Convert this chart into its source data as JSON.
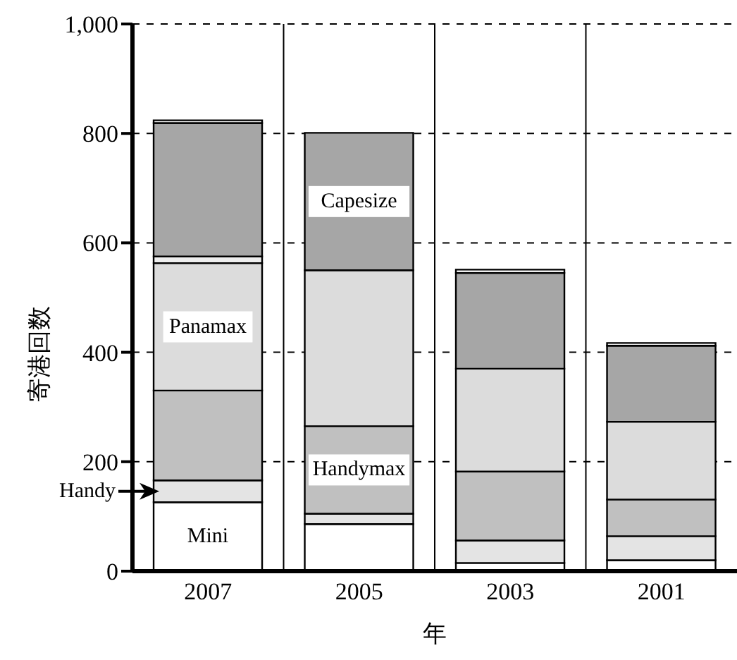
{
  "chart_data": {
    "type": "bar",
    "stacked": true,
    "xlabel": "年",
    "ylabel": "寄港回数",
    "categories": [
      "2007",
      "2005",
      "2003",
      "2001"
    ],
    "series": [
      {
        "name": "Mini",
        "color": "#ffffff",
        "values": [
          126,
          86,
          15,
          20
        ]
      },
      {
        "name": "Handy",
        "color": "#e4e4e4",
        "values": [
          40,
          19,
          41,
          44
        ]
      },
      {
        "name": "Handymax",
        "color": "#c0c0c0",
        "values": [
          164,
          160,
          126,
          67
        ]
      },
      {
        "name": "Panamax",
        "color": "#dcdcdc",
        "values": [
          233,
          285,
          188,
          142
        ]
      },
      {
        "color": "#eeeeee",
        "values": [
          12,
          null,
          null,
          null
        ]
      },
      {
        "name": "Capesize",
        "color": "#a6a6a6",
        "values": [
          244,
          251,
          175,
          139
        ]
      },
      {
        "color": "#f0f0f0",
        "values": [
          5,
          null,
          6,
          5
        ]
      }
    ],
    "ylim": [
      0,
      1000
    ],
    "yticks": [
      0,
      200,
      400,
      600,
      800,
      {
        "value": 1000,
        "label": "1,000"
      }
    ],
    "grid": true
  }
}
